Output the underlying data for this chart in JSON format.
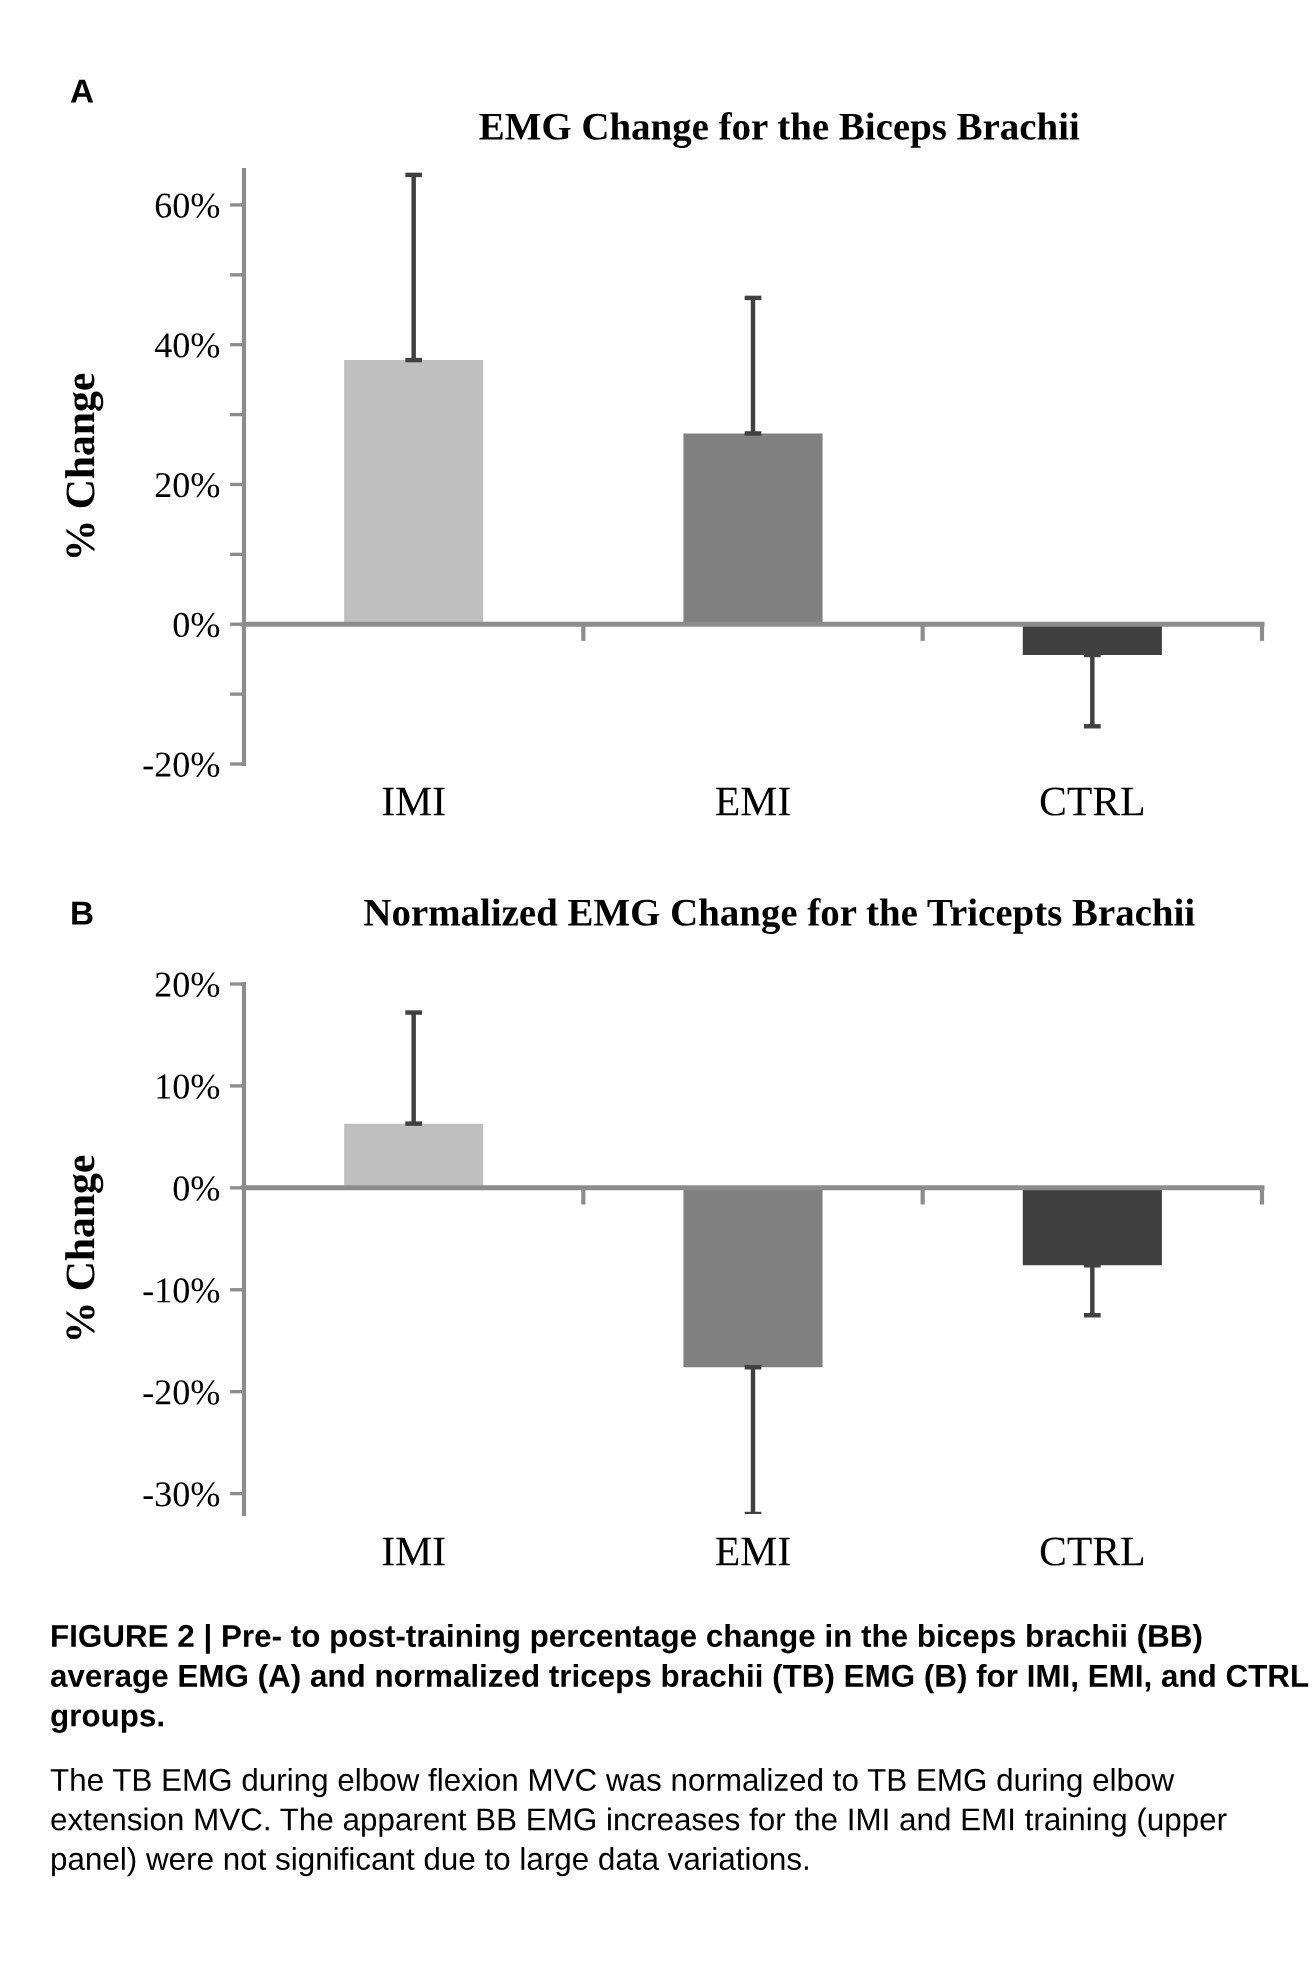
{
  "chart_data": [
    {
      "type": "bar",
      "title": "EMG Change for the Biceps Brachii",
      "ylabel": "% Change",
      "categories": [
        "IMI",
        "EMI",
        "CTRL"
      ],
      "values": [
        37.8,
        27.3,
        -4.4
      ],
      "colors": [
        "#bfbfbf",
        "#808080",
        "#404040"
      ],
      "errors": [
        [
          37.8,
          64.3
        ],
        [
          27.3,
          46.7
        ],
        [
          -14.6,
          -4.4
        ]
      ],
      "ylim": [
        -20,
        65
      ],
      "yticks": [
        {
          "value": -20,
          "label": "-20%"
        },
        {
          "value": -10,
          "label": null
        },
        {
          "value": 0,
          "label": "0%"
        },
        {
          "value": 10,
          "label": null
        },
        {
          "value": 20,
          "label": "20%"
        },
        {
          "value": 30,
          "label": null
        },
        {
          "value": 40,
          "label": "40%"
        },
        {
          "value": 50,
          "label": null
        },
        {
          "value": 60,
          "label": "60%"
        }
      ],
      "legend": false,
      "annotations": [
        "A"
      ]
    },
    {
      "type": "bar",
      "title": "Normalized EMG Change for the Tricepts Brachii",
      "ylabel": "% Change",
      "categories": [
        "IMI",
        "EMI",
        "CTRL"
      ],
      "values": [
        6.3,
        -17.6,
        -7.6
      ],
      "colors": [
        "#bfbfbf",
        "#808080",
        "#404040"
      ],
      "errors": [
        [
          6.3,
          17.2
        ],
        [
          -32.0,
          -17.6
        ],
        [
          -12.5,
          -7.6
        ]
      ],
      "ylim": [
        -32,
        20
      ],
      "yticks": [
        {
          "value": -30,
          "label": "-30%"
        },
        {
          "value": -20,
          "label": "-20%"
        },
        {
          "value": -10,
          "label": "-10%"
        },
        {
          "value": 0,
          "label": "0%"
        },
        {
          "value": 10,
          "label": "10%"
        },
        {
          "value": 20,
          "label": "20%"
        }
      ],
      "legend": false,
      "annotations": [
        "B",
        "FIGURE 2 | Pre- to post-training percentage change in the biceps brachii (BB) average EMG (A) and normalized triceps brachii (TB) EMG (B) for IMI, EMI, and CTRL groups.",
        "The TB EMG during elbow flexion MVC was normalized to TB EMG during elbow extension MVC. The apparent BB EMG increases for the IMI and EMI training (upper panel) were not significant due to large data variations."
      ]
    }
  ]
}
